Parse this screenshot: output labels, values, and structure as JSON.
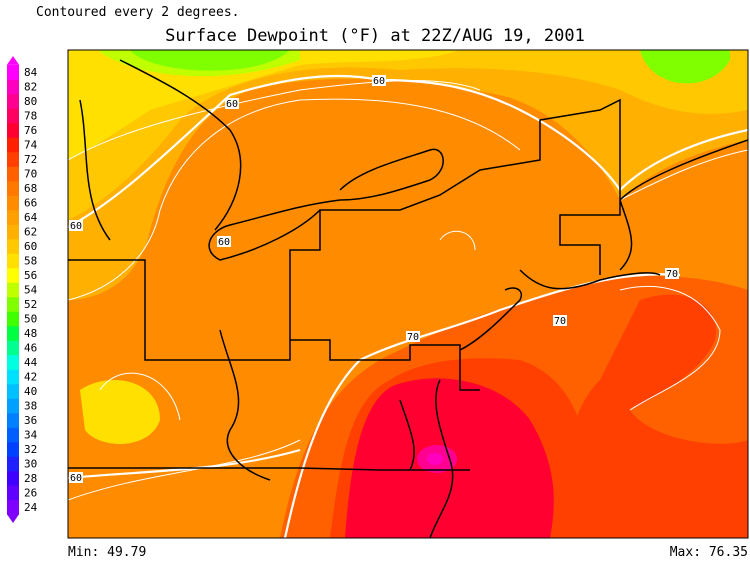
{
  "header": {
    "note": "Contoured every 2 degrees.",
    "title": "Surface Dewpoint (°F) at 22Z/AUG 19, 2001"
  },
  "legend": {
    "levels": [
      24,
      26,
      28,
      30,
      32,
      34,
      36,
      38,
      40,
      42,
      44,
      46,
      48,
      50,
      52,
      54,
      56,
      58,
      60,
      62,
      64,
      66,
      68,
      70,
      72,
      74,
      76,
      78,
      80,
      82,
      84
    ],
    "colors": [
      "#8000ff",
      "#6000ff",
      "#4000ff",
      "#2020ff",
      "#0040ff",
      "#0060ff",
      "#0080ff",
      "#00a0ff",
      "#00c0ff",
      "#00e0ff",
      "#00ffe0",
      "#00ff90",
      "#00ff40",
      "#40ff00",
      "#80ff00",
      "#c0ff00",
      "#ffff00",
      "#ffe000",
      "#ffc800",
      "#ffb000",
      "#ffa000",
      "#ff8c00",
      "#ff7800",
      "#ff6000",
      "#ff4000",
      "#ff2000",
      "#ff0030",
      "#ff0060",
      "#ff0090",
      "#ff00c0",
      "#ff00ff"
    ]
  },
  "contour_labels": [
    "60",
    "60",
    "60",
    "60",
    "60",
    "70",
    "70",
    "70"
  ],
  "footer": {
    "min": "Min: 49.79",
    "max": "Max: 76.35"
  }
}
